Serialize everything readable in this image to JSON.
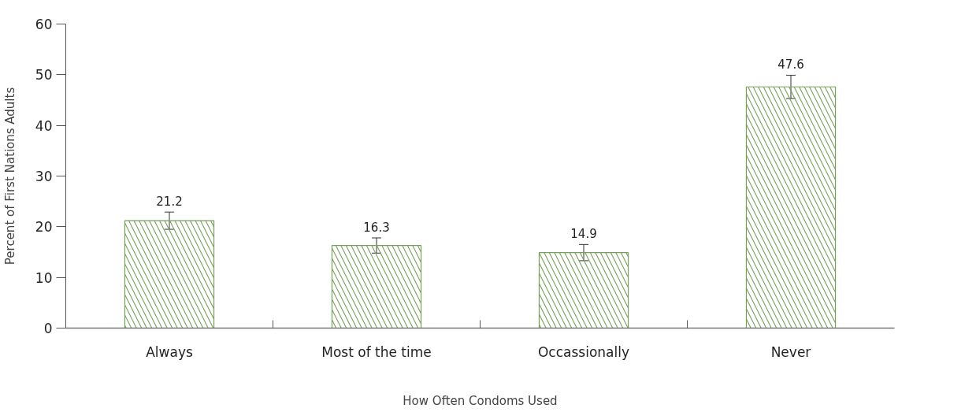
{
  "chart_data": {
    "type": "bar",
    "xlabel": "How Often Condoms Used",
    "ylabel": "Percent of First Nations Adults",
    "categories": [
      "Always",
      "Most of the time",
      "Occassionally",
      "Never"
    ],
    "values": [
      21.2,
      16.3,
      14.9,
      47.6
    ],
    "errors": [
      1.7,
      1.5,
      1.6,
      2.3
    ],
    "color": "#76a05a",
    "ylim": [
      0,
      60
    ],
    "yticks": [
      0,
      10,
      20,
      30,
      40,
      50,
      60
    ],
    "data_labels": true,
    "grid": false
  }
}
